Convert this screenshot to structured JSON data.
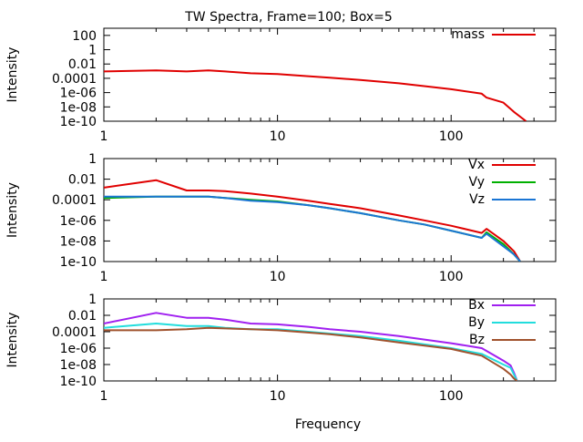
{
  "chart_data": [
    {
      "type": "line",
      "title": "TW Spectra, Frame=100; Box=5",
      "xlabel": "",
      "ylabel": "Intensity",
      "xscale": "log",
      "yscale": "log",
      "xlim": [
        1,
        400
      ],
      "ylim": [
        1e-10,
        1000
      ],
      "xticks": [
        {
          "value": 1,
          "label": "1"
        },
        {
          "value": 10,
          "label": "10"
        },
        {
          "value": 100,
          "label": "100"
        }
      ],
      "yticks": [
        {
          "value": 100,
          "label": "100"
        },
        {
          "value": 1,
          "label": "1"
        },
        {
          "value": 0.01,
          "label": "0.01"
        },
        {
          "value": 0.0001,
          "label": "0.0001"
        },
        {
          "value": 1e-06,
          "label": "1e-06"
        },
        {
          "value": 1e-08,
          "label": "1e-08"
        },
        {
          "value": 1e-10,
          "label": "1e-10"
        }
      ],
      "legend_position": "top-right",
      "series": [
        {
          "name": "mass",
          "color": "#e00000",
          "x": [
            1,
            2,
            3,
            4,
            5,
            7,
            10,
            15,
            20,
            30,
            50,
            70,
            100,
            150,
            160,
            200,
            230,
            270
          ],
          "y": [
            0.0009,
            0.0013,
            0.0009,
            0.0013,
            0.0009,
            0.0005,
            0.0004,
            0.0002,
            0.00012,
            6e-05,
            2e-05,
            8e-06,
            3e-06,
            7e-07,
            2e-07,
            4e-08,
            2e-09,
            1e-10
          ]
        }
      ]
    },
    {
      "type": "line",
      "title": "",
      "xlabel": "",
      "ylabel": "Intensity",
      "xscale": "log",
      "yscale": "log",
      "xlim": [
        1,
        400
      ],
      "ylim": [
        1e-10,
        1
      ],
      "xticks": [
        {
          "value": 1,
          "label": "1"
        },
        {
          "value": 10,
          "label": "10"
        },
        {
          "value": 100,
          "label": "100"
        }
      ],
      "yticks": [
        {
          "value": 1,
          "label": "1"
        },
        {
          "value": 0.01,
          "label": "0.01"
        },
        {
          "value": 0.0001,
          "label": "0.0001"
        },
        {
          "value": 1e-06,
          "label": "1e-06"
        },
        {
          "value": 1e-08,
          "label": "1e-08"
        },
        {
          "value": 1e-10,
          "label": "1e-10"
        }
      ],
      "legend_position": "top-right",
      "series": [
        {
          "name": "Vx",
          "color": "#e00000",
          "x": [
            1,
            2,
            3,
            4,
            5,
            7,
            10,
            15,
            20,
            30,
            50,
            70,
            100,
            150,
            160,
            200,
            230,
            250
          ],
          "y": [
            0.0015,
            0.008,
            0.0008,
            0.0008,
            0.0007,
            0.0004,
            0.0002,
            8e-05,
            4e-05,
            1.5e-05,
            3e-06,
            1e-06,
            3e-07,
            6e-08,
            1.5e-07,
            1e-08,
            1e-09,
            1e-10
          ]
        },
        {
          "name": "Vy",
          "color": "#00b000",
          "x": [
            1,
            2,
            3,
            4,
            5,
            7,
            10,
            15,
            20,
            30,
            50,
            70,
            100,
            150,
            160,
            200,
            230,
            250
          ],
          "y": [
            0.00015,
            0.0002,
            0.0002,
            0.0002,
            0.00015,
            0.0001,
            7e-05,
            3e-05,
            1.5e-05,
            5e-06,
            1e-06,
            4e-07,
            1e-07,
            2e-08,
            7e-08,
            5e-09,
            5e-10,
            1e-10
          ]
        },
        {
          "name": "Vz",
          "color": "#1a75d4",
          "x": [
            1,
            2,
            3,
            4,
            5,
            7,
            10,
            15,
            20,
            30,
            50,
            70,
            100,
            150,
            160,
            200,
            230,
            250
          ],
          "y": [
            0.0002,
            0.0002,
            0.0002,
            0.0002,
            0.00015,
            8e-05,
            6e-05,
            3e-05,
            1.5e-05,
            5e-06,
            1e-06,
            4e-07,
            1e-07,
            2e-08,
            5e-08,
            3e-09,
            5e-10,
            1e-10
          ]
        }
      ]
    },
    {
      "type": "line",
      "title": "",
      "xlabel": "Frequency",
      "ylabel": "Intensity",
      "xscale": "log",
      "yscale": "log",
      "xlim": [
        1,
        400
      ],
      "ylim": [
        1e-10,
        1
      ],
      "xticks": [
        {
          "value": 1,
          "label": "1"
        },
        {
          "value": 10,
          "label": "10"
        },
        {
          "value": 100,
          "label": "100"
        }
      ],
      "yticks": [
        {
          "value": 1,
          "label": "1"
        },
        {
          "value": 0.01,
          "label": "0.01"
        },
        {
          "value": 0.0001,
          "label": "0.0001"
        },
        {
          "value": 1e-06,
          "label": "1e-06"
        },
        {
          "value": 1e-08,
          "label": "1e-08"
        },
        {
          "value": 1e-10,
          "label": "1e-10"
        }
      ],
      "legend_position": "top-right",
      "series": [
        {
          "name": "Bx",
          "color": "#a020f0",
          "x": [
            1,
            2,
            3,
            4,
            5,
            7,
            10,
            15,
            20,
            30,
            50,
            100,
            150,
            200,
            220,
            230,
            240
          ],
          "y": [
            0.001,
            0.02,
            0.005,
            0.005,
            0.003,
            0.001,
            0.0008,
            0.0004,
            0.0002,
            0.0001,
            3e-05,
            4e-06,
            1e-06,
            3e-08,
            8e-09,
            1e-09,
            1e-10
          ]
        },
        {
          "name": "By",
          "color": "#22dddd",
          "x": [
            1,
            2,
            3,
            4,
            5,
            7,
            10,
            15,
            20,
            30,
            50,
            100,
            150,
            200,
            220,
            230,
            240
          ],
          "y": [
            0.0003,
            0.001,
            0.0005,
            0.0005,
            0.0003,
            0.0002,
            0.0002,
            0.0001,
            6e-05,
            3e-05,
            8e-06,
            1e-06,
            2e-07,
            1e-08,
            4e-09,
            6e-10,
            1e-10
          ]
        },
        {
          "name": "Bz",
          "color": "#a0522d",
          "x": [
            1,
            2,
            3,
            4,
            5,
            7,
            10,
            15,
            20,
            30,
            50,
            100,
            150,
            200,
            220,
            230,
            240
          ],
          "y": [
            0.00015,
            0.00015,
            0.0002,
            0.0003,
            0.00025,
            0.0002,
            0.00015,
            8e-05,
            5e-05,
            2e-05,
            5e-06,
            8e-07,
            1.2e-07,
            3e-09,
            6e-10,
            2e-10,
            1e-10
          ]
        }
      ]
    }
  ]
}
